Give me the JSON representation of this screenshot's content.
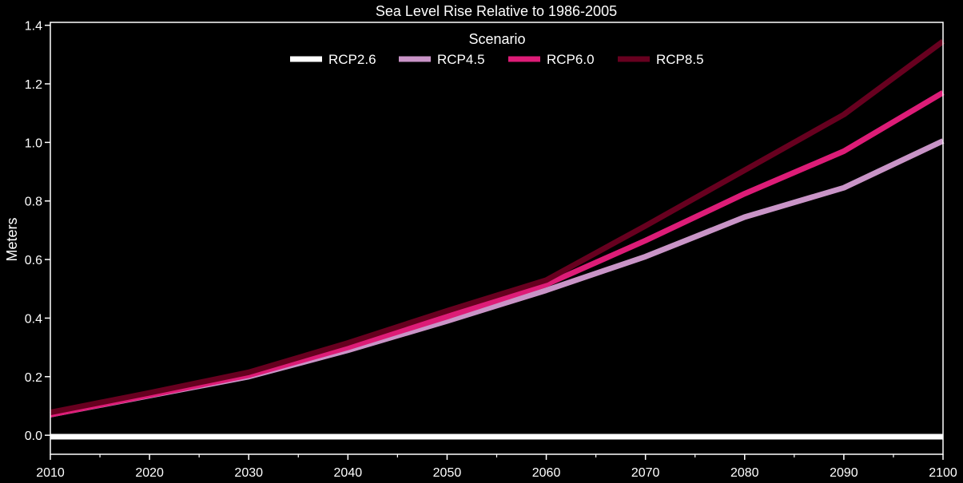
{
  "chart_data": {
    "type": "line",
    "title": "Sea Level Rise Relative to 1986-2005",
    "xlabel": "",
    "ylabel": "Meters",
    "xlim": [
      2010,
      2100
    ],
    "ylim": [
      -0.065,
      1.41
    ],
    "x_ticks": [
      2010,
      2020,
      2030,
      2040,
      2050,
      2060,
      2070,
      2080,
      2090,
      2100
    ],
    "x_minor_ticks": [
      2015,
      2025,
      2035,
      2045,
      2055,
      2065,
      2075,
      2085,
      2095
    ],
    "y_ticks": [
      0.0,
      0.2,
      0.4,
      0.6,
      0.8,
      1.0,
      1.2,
      1.4
    ],
    "grid": false,
    "legend": {
      "title": "Scenario",
      "placement": "top-center"
    },
    "x": [
      2010,
      2020,
      2030,
      2040,
      2050,
      2060,
      2070,
      2080,
      2090,
      2100
    ],
    "series": [
      {
        "name": "RCP2.6",
        "color": "#ffffff",
        "values": [
          -0.005,
          -0.005,
          -0.005,
          -0.005,
          -0.005,
          -0.005,
          -0.005,
          -0.005,
          -0.005,
          -0.005
        ]
      },
      {
        "name": "RCP4.5",
        "color": "#c994c7",
        "values": [
          0.07,
          0.135,
          0.2,
          0.29,
          0.39,
          0.495,
          0.61,
          0.745,
          0.845,
          1.005
        ]
      },
      {
        "name": "RCP6.0",
        "color": "#dd1c77",
        "values": [
          0.07,
          0.137,
          0.205,
          0.3,
          0.405,
          0.515,
          0.665,
          0.825,
          0.97,
          1.17
        ]
      },
      {
        "name": "RCP8.5",
        "color": "#67001f",
        "values": [
          0.078,
          0.145,
          0.215,
          0.315,
          0.425,
          0.53,
          0.715,
          0.905,
          1.095,
          1.345
        ]
      }
    ]
  }
}
